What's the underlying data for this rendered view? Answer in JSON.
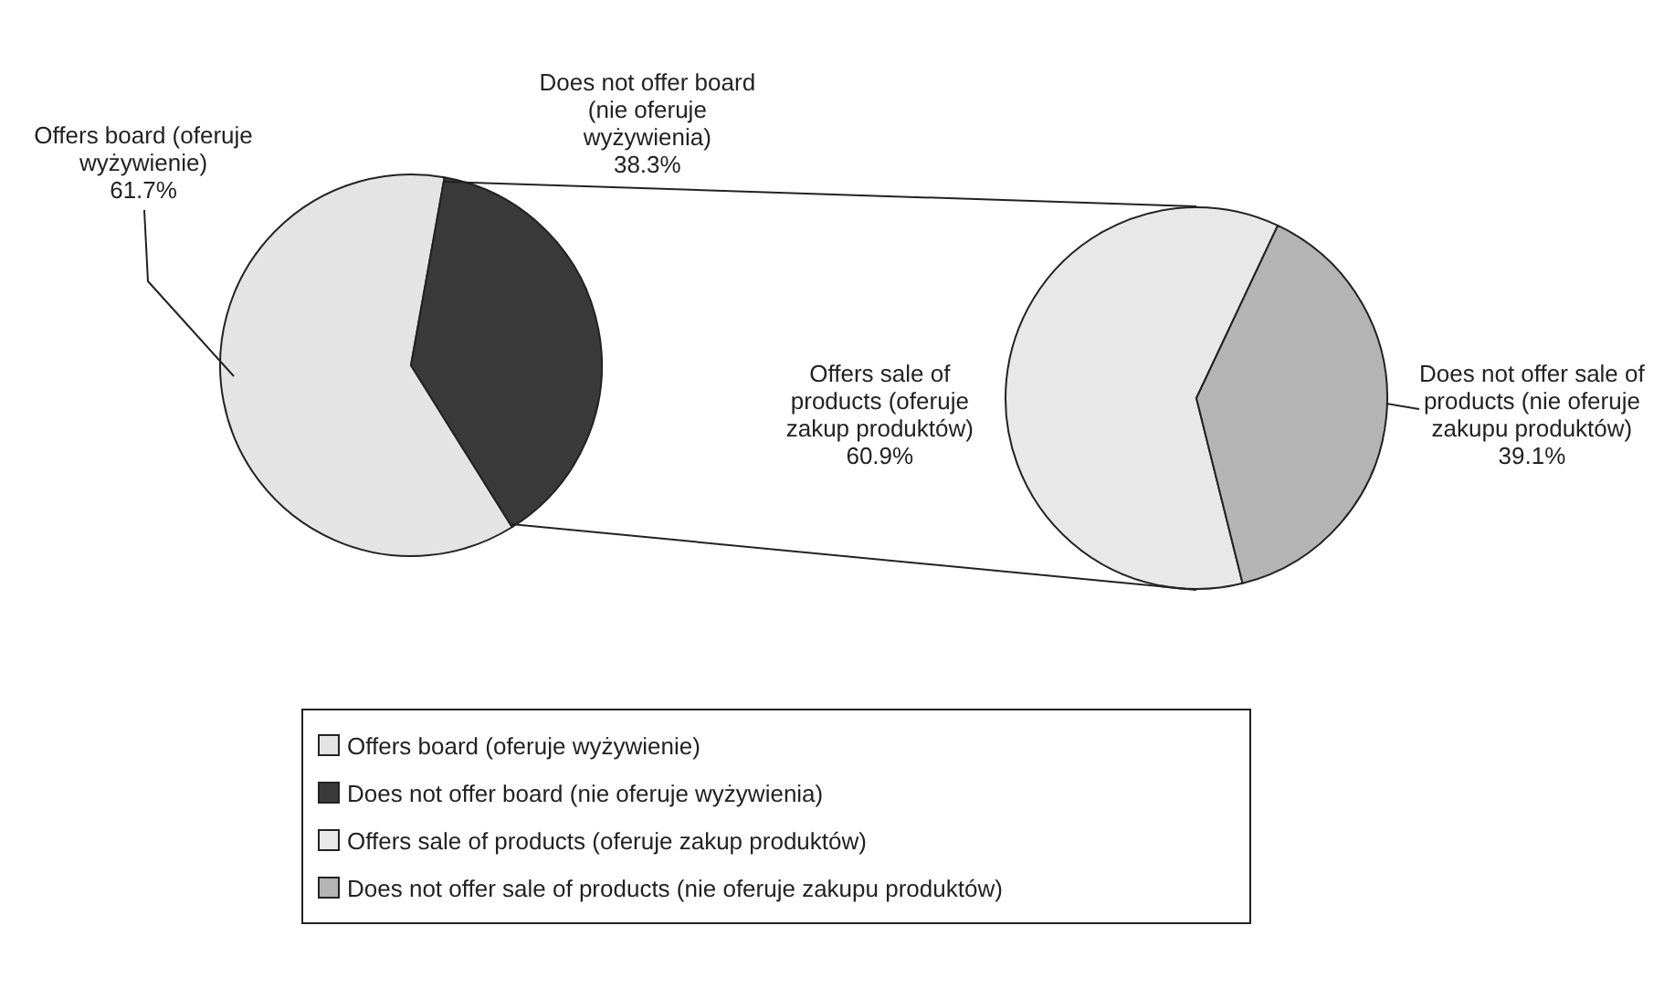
{
  "chart_data": [
    {
      "type": "pie",
      "categories": [
        "Offers board (oferuje wyżywienie)",
        "Does not offer board (nie oferuje wyżywienia)"
      ],
      "values": [
        61.7,
        38.3
      ],
      "colors": [
        "#e4e4e4",
        "#3a3a3a"
      ],
      "value_labels": [
        "61.7%",
        "38.3%"
      ],
      "legend": "bottom"
    },
    {
      "type": "pie",
      "categories": [
        "Offers sale of products (oferuje zakup produktów)",
        "Does not offer sale of products (nie oferuje zakupu produktów)"
      ],
      "values": [
        60.9,
        39.1
      ],
      "colors": [
        "#e8e8e8",
        "#b4b4b4"
      ],
      "value_labels": [
        "60.9%",
        "39.1%"
      ],
      "legend": "bottom"
    }
  ]
}
